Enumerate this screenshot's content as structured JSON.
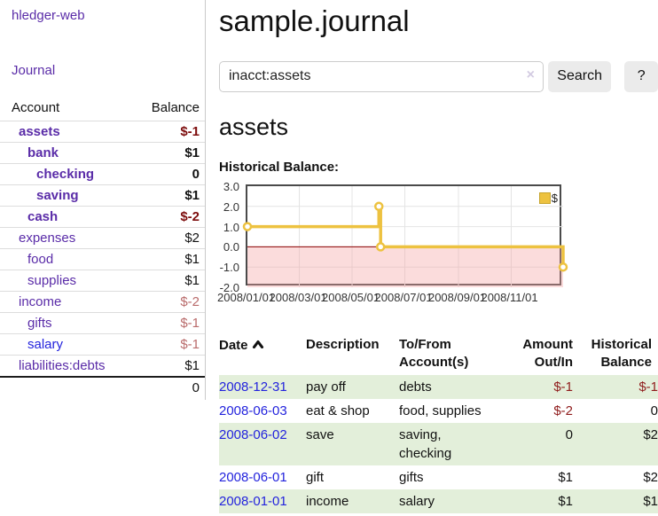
{
  "sidebar": {
    "brand": "hledger-web",
    "journal_link": "Journal",
    "accounts_header": {
      "account": "Account",
      "balance": "Balance"
    },
    "accounts": [
      {
        "name": "assets",
        "balance": "$-1"
      },
      {
        "name": "bank",
        "balance": "$1"
      },
      {
        "name": "checking",
        "balance": "0"
      },
      {
        "name": "saving",
        "balance": "$1"
      },
      {
        "name": "cash",
        "balance": "$-2"
      },
      {
        "name": "expenses",
        "balance": "$2"
      },
      {
        "name": "food",
        "balance": "$1"
      },
      {
        "name": "supplies",
        "balance": "$1"
      },
      {
        "name": "income",
        "balance": "$-2"
      },
      {
        "name": "gifts",
        "balance": "$-1"
      },
      {
        "name": "salary",
        "balance": "$-1"
      },
      {
        "name": "liabilities:debts",
        "balance": "$1"
      }
    ],
    "total": "0"
  },
  "main": {
    "title": "sample.journal",
    "search": {
      "value": "inacct:assets",
      "clear_icon": "×",
      "search_button": "Search",
      "help_button": "?"
    },
    "account_heading": "assets",
    "chart_title": "Historical Balance:"
  },
  "chart_data": {
    "type": "line",
    "step": true,
    "title": "Historical Balance",
    "legend": [
      {
        "label": "$",
        "color": "#edc240"
      }
    ],
    "legend_position": "top-right",
    "series": [
      {
        "name": "$",
        "color": "#edc240",
        "points": [
          {
            "date": "2008-01-01",
            "value": 1
          },
          {
            "date": "2008-06-01",
            "value": 2
          },
          {
            "date": "2008-06-03",
            "value": 0
          },
          {
            "date": "2008-12-31",
            "value": -1
          }
        ]
      }
    ],
    "x_range": {
      "min": "2008-01-01",
      "max": "2008-12-31"
    },
    "ylim": [
      -2,
      3
    ],
    "yticks": [
      3.0,
      2.0,
      1.0,
      0.0,
      -1.0,
      -2.0
    ],
    "xticks": [
      {
        "date": "2008-01-01",
        "label": "2008/01/01"
      },
      {
        "date": "2008-03-01",
        "label": "2008/03/01"
      },
      {
        "date": "2008-05-01",
        "label": "2008/05/01"
      },
      {
        "date": "2008-07-01",
        "label": "2008/07/01"
      },
      {
        "date": "2008-09-01",
        "label": "2008/09/01"
      },
      {
        "date": "2008-11-01",
        "label": "2008/11/01"
      }
    ],
    "grid": true,
    "negative_region": true,
    "negative_region_color": "#f9d7d7",
    "zero_line_color": "#8b0000"
  },
  "register": {
    "headers": {
      "date": "Date",
      "description": "Description",
      "accounts": "To/From Account(s)",
      "amount": "Amount Out/In",
      "balance": "Historical Balance"
    },
    "rows": [
      {
        "date": "2008-12-31",
        "description": "pay off",
        "accounts": "debts",
        "amount": "$-1",
        "balance": "$-1"
      },
      {
        "date": "2008-06-03",
        "description": "eat & shop",
        "accounts": "food, supplies",
        "amount": "$-2",
        "balance": "0"
      },
      {
        "date": "2008-06-02",
        "description": "save",
        "accounts": "saving, checking",
        "amount": "0",
        "balance": "$2"
      },
      {
        "date": "2008-06-01",
        "description": "gift",
        "accounts": "gifts",
        "amount": "$1",
        "balance": "$2"
      },
      {
        "date": "2008-01-01",
        "description": "income",
        "accounts": "salary",
        "amount": "$1",
        "balance": "$1"
      }
    ]
  }
}
